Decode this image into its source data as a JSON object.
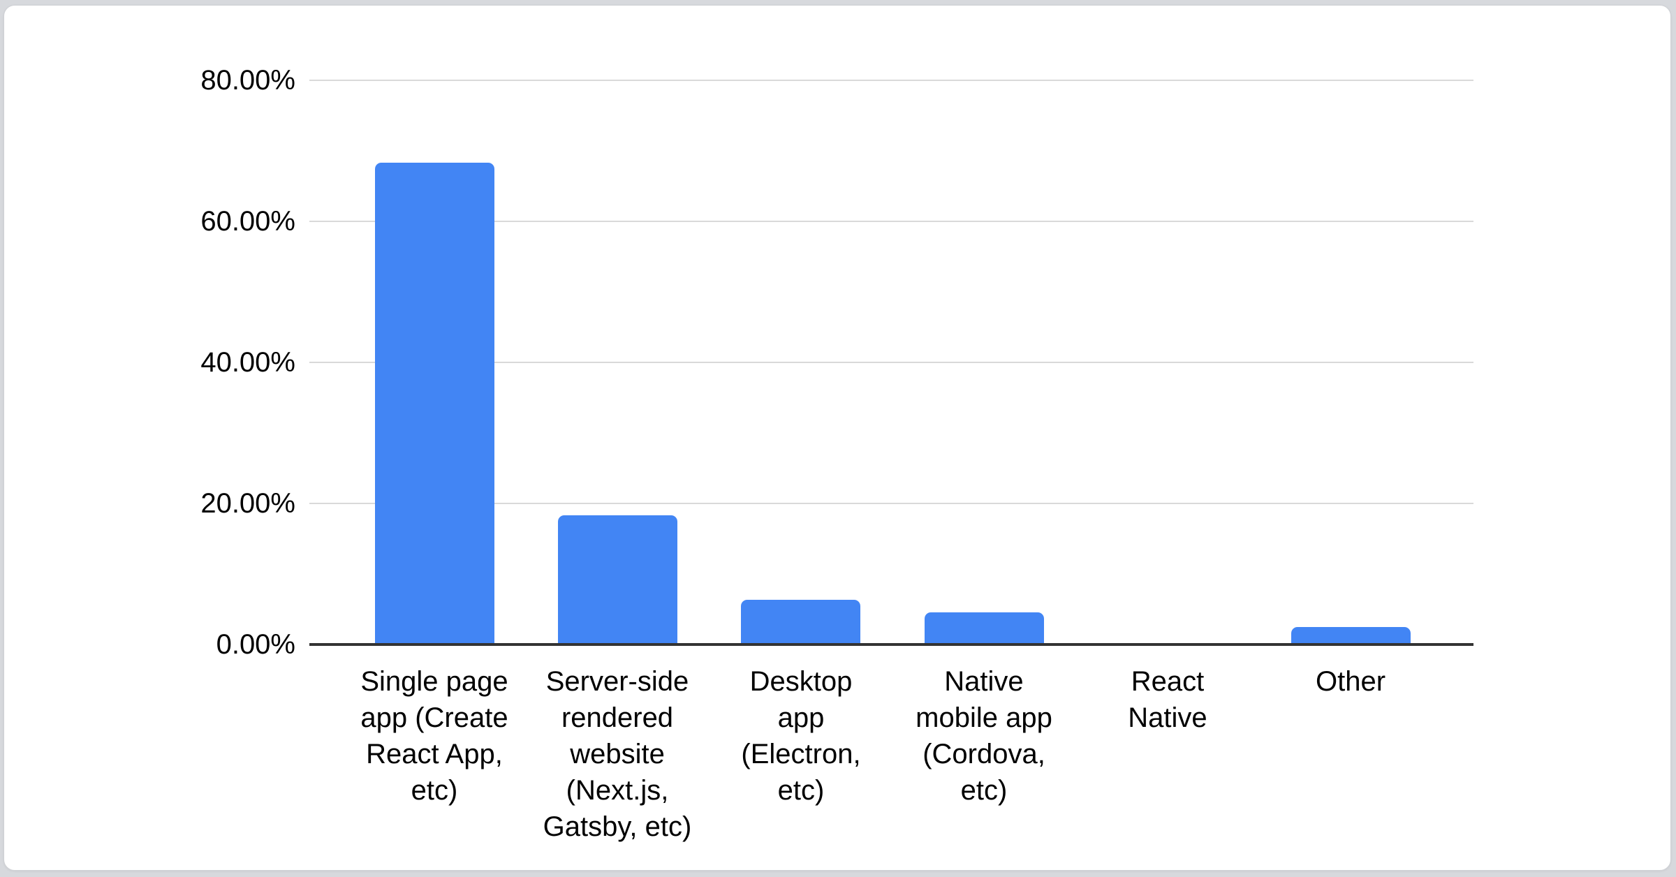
{
  "page": {
    "background": "#d7d9dd",
    "card_background": "#ffffff"
  },
  "chart_data": {
    "type": "bar",
    "title": "",
    "xlabel": "",
    "ylabel": "",
    "unit": "%",
    "categories": [
      "Single page app (Create React App, etc)",
      "Server-side rendered website (Next.js, Gatsby, etc)",
      "Desktop app (Electron, etc)",
      "Native mobile app (Cordova, etc)",
      "React Native",
      "Other"
    ],
    "category_lines": [
      [
        "Single page",
        "app (Create",
        "React App,",
        "etc)"
      ],
      [
        "Server-side",
        "rendered",
        "website",
        "(Next.js,",
        "Gatsby, etc)"
      ],
      [
        "Desktop",
        "app",
        "(Electron,",
        "etc)"
      ],
      [
        "Native",
        "mobile app",
        "(Cordova,",
        "etc)"
      ],
      [
        "React",
        "Native"
      ],
      [
        "Other"
      ]
    ],
    "values": [
      68.3,
      18.3,
      6.3,
      4.6,
      0,
      2.5
    ],
    "ylim": [
      0,
      80
    ],
    "y_ticks": [
      {
        "value": 80,
        "label": "80.00%"
      },
      {
        "value": 60,
        "label": "60.00%"
      },
      {
        "value": 40,
        "label": "40.00%"
      },
      {
        "value": 20,
        "label": "20.00%"
      },
      {
        "value": 0,
        "label": "0.00%"
      }
    ],
    "grid": true,
    "legend": "none",
    "colors": {
      "bar": "#4285f4",
      "gridline": "#d9d9d9",
      "axis_line": "#333333",
      "label_text": "#000000"
    }
  }
}
